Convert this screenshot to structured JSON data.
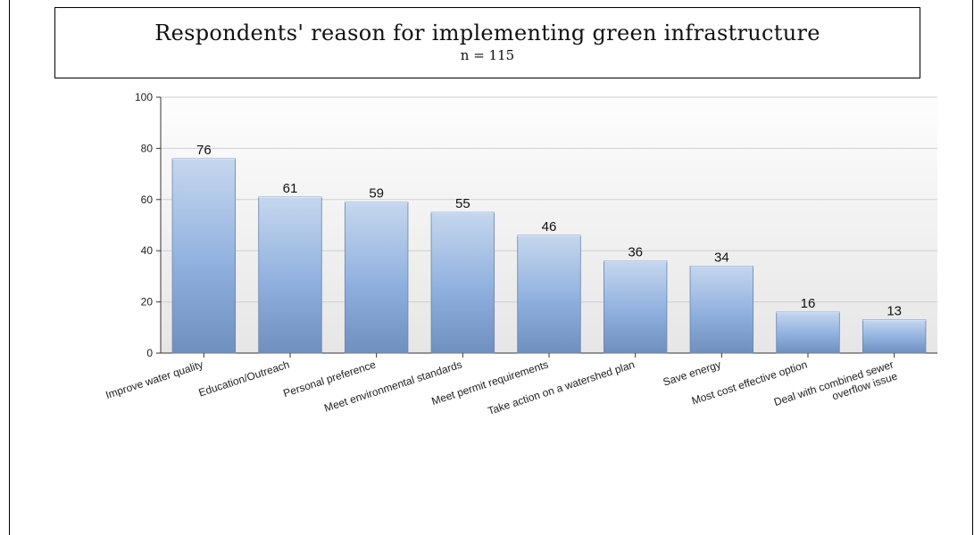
{
  "title": "Respondents' reason for implementing green infrastructure",
  "subtitle": "n = 115",
  "chart_data": {
    "type": "bar",
    "categories": [
      "Improve water quality",
      "Education/Outreach",
      "Personal preference",
      "Meet environmental standards",
      "Meet permit requirements",
      "Take action on a watershed plan",
      "Save energy",
      "Most cost effective option",
      "Deal with combined sewer overflow issue"
    ],
    "category_lines": [
      [
        "Improve water quality"
      ],
      [
        "Education/Outreach"
      ],
      [
        "Personal preference"
      ],
      [
        "Meet environmental standards"
      ],
      [
        "Meet permit requirements"
      ],
      [
        "Take action on a watershed plan"
      ],
      [
        "Save energy"
      ],
      [
        "Most cost effective option"
      ],
      [
        "Deal with combined sewer",
        "overflow issue"
      ]
    ],
    "values": [
      76,
      61,
      59,
      55,
      46,
      36,
      34,
      16,
      13
    ],
    "ylim": [
      0,
      100
    ],
    "yticks": [
      0,
      20,
      40,
      60,
      80,
      100
    ],
    "grid": true,
    "colors": {
      "bar_top": "#c6d7ee",
      "bar_mid": "#8fb0de",
      "bar_bottom": "#6f8fbf",
      "plot_bg_top": "#fdfdfd",
      "plot_bg_bottom": "#e6e6e6",
      "grid": "#cfcfcf"
    }
  }
}
